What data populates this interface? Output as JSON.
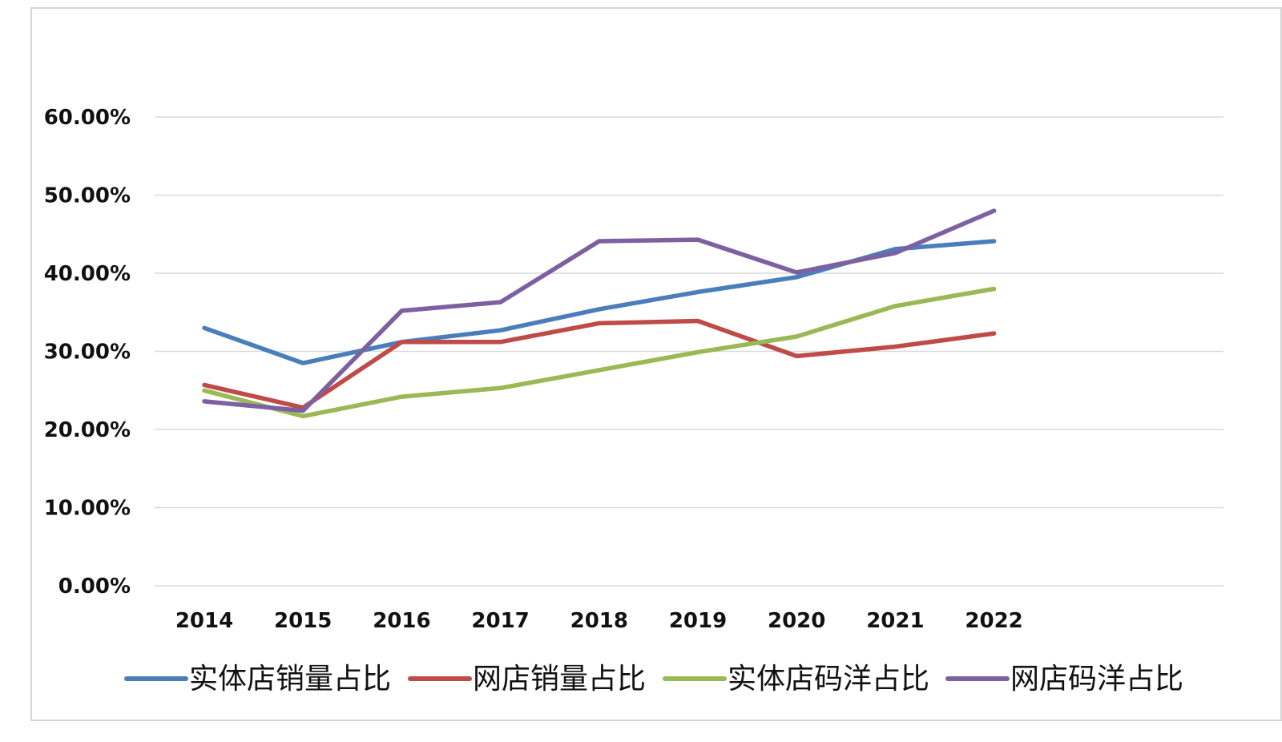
{
  "chart_data": {
    "type": "line",
    "categories": [
      "2014",
      "2015",
      "2016",
      "2017",
      "2018",
      "2019",
      "2020",
      "2021",
      "2022"
    ],
    "ylim": [
      0,
      0.6
    ],
    "yticks": [
      0,
      0.1,
      0.2,
      0.3,
      0.4,
      0.5,
      0.6
    ],
    "ytick_labels": [
      "0.00%",
      "10.00%",
      "20.00%",
      "30.00%",
      "40.00%",
      "50.00%",
      "60.00%"
    ],
    "grid": true,
    "legend_position": "bottom",
    "series": [
      {
        "name": "实体店销量占比",
        "color": "#4a7ebb",
        "values": [
          0.33,
          0.285,
          0.312,
          0.327,
          0.354,
          0.376,
          0.395,
          0.431,
          0.441
        ]
      },
      {
        "name": "网店销量占比",
        "color": "#be4b48",
        "values": [
          0.257,
          0.228,
          0.312,
          0.312,
          0.336,
          0.339,
          0.294,
          0.306,
          0.323
        ]
      },
      {
        "name": "实体店码洋占比",
        "color": "#98b954",
        "values": [
          0.25,
          0.217,
          0.242,
          0.253,
          0.276,
          0.299,
          0.319,
          0.358,
          0.38
        ]
      },
      {
        "name": "网店码洋占比",
        "color": "#7d60a0",
        "values": [
          0.236,
          0.224,
          0.352,
          0.363,
          0.441,
          0.443,
          0.401,
          0.426,
          0.48
        ]
      }
    ]
  }
}
